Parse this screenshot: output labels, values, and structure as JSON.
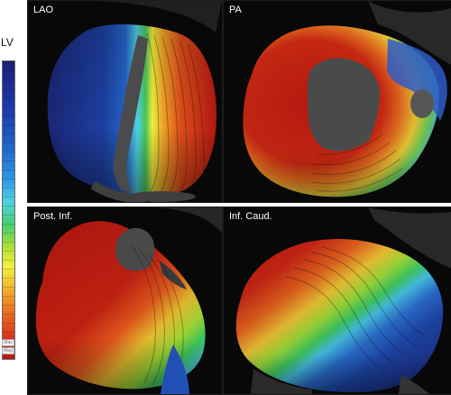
{
  "legend": {
    "title": "LV",
    "labels": [
      "Max",
      "Mag"
    ]
  },
  "panels": [
    {
      "label": "LAO"
    },
    {
      "label": "PA"
    },
    {
      "label": "Post. Inf."
    },
    {
      "label": "Inf. Caud."
    }
  ],
  "colors": {
    "background": "#000000",
    "legend_border": "#666666",
    "label_text": "#ffffff",
    "red": "#c51d12",
    "orange": "#ea6f1f",
    "yellow": "#f0e63d",
    "green": "#4dc65a",
    "cyan": "#66dbe5",
    "blue": "#1f58c8",
    "dark_blue": "#17236b"
  }
}
